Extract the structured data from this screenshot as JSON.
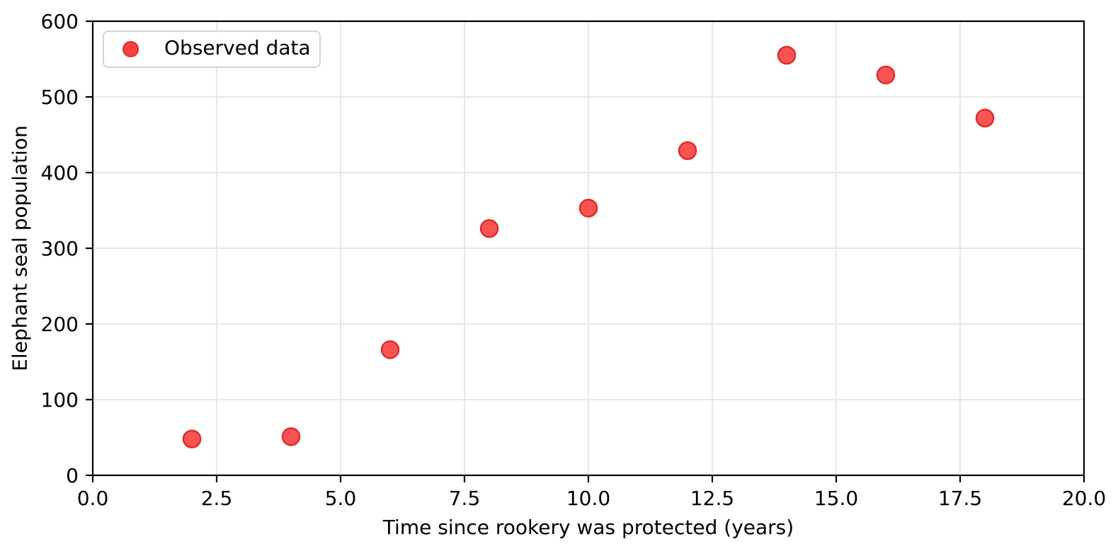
{
  "figure": {
    "xlabel": "Time since rookery was protected (years)",
    "ylabel": "Elephant seal population",
    "legend": {
      "label": "Observed data"
    }
  },
  "chart_data": {
    "type": "scatter",
    "title": "",
    "xlabel": "Time since rookery was protected (years)",
    "ylabel": "Elephant seal population",
    "series": [
      {
        "name": "Observed data",
        "x": [
          2,
          4,
          6,
          8,
          10,
          12,
          14,
          16,
          18
        ],
        "y": [
          48,
          51,
          166,
          326,
          353,
          429,
          555,
          529,
          472
        ]
      }
    ],
    "xlim": [
      0,
      20
    ],
    "ylim": [
      0,
      600
    ],
    "xticks": [
      0,
      2.5,
      5,
      7.5,
      10,
      12.5,
      15,
      17.5,
      20
    ],
    "xtick_labels": [
      "0.0",
      "2.5",
      "5.0",
      "7.5",
      "10.0",
      "12.5",
      "15.0",
      "17.5",
      "20.0"
    ],
    "yticks": [
      0,
      100,
      200,
      300,
      400,
      500,
      600
    ],
    "ytick_labels": [
      "0",
      "100",
      "200",
      "300",
      "400",
      "500",
      "600"
    ],
    "grid": true,
    "legend_position": "upper-left",
    "colors": {
      "marker_fill": "#f94040",
      "marker_edge": "#e62929",
      "grid": "#e7e7e7",
      "spine": "#000000",
      "background": "#ffffff"
    },
    "marker": {
      "shape": "circle",
      "radius": 12
    }
  }
}
